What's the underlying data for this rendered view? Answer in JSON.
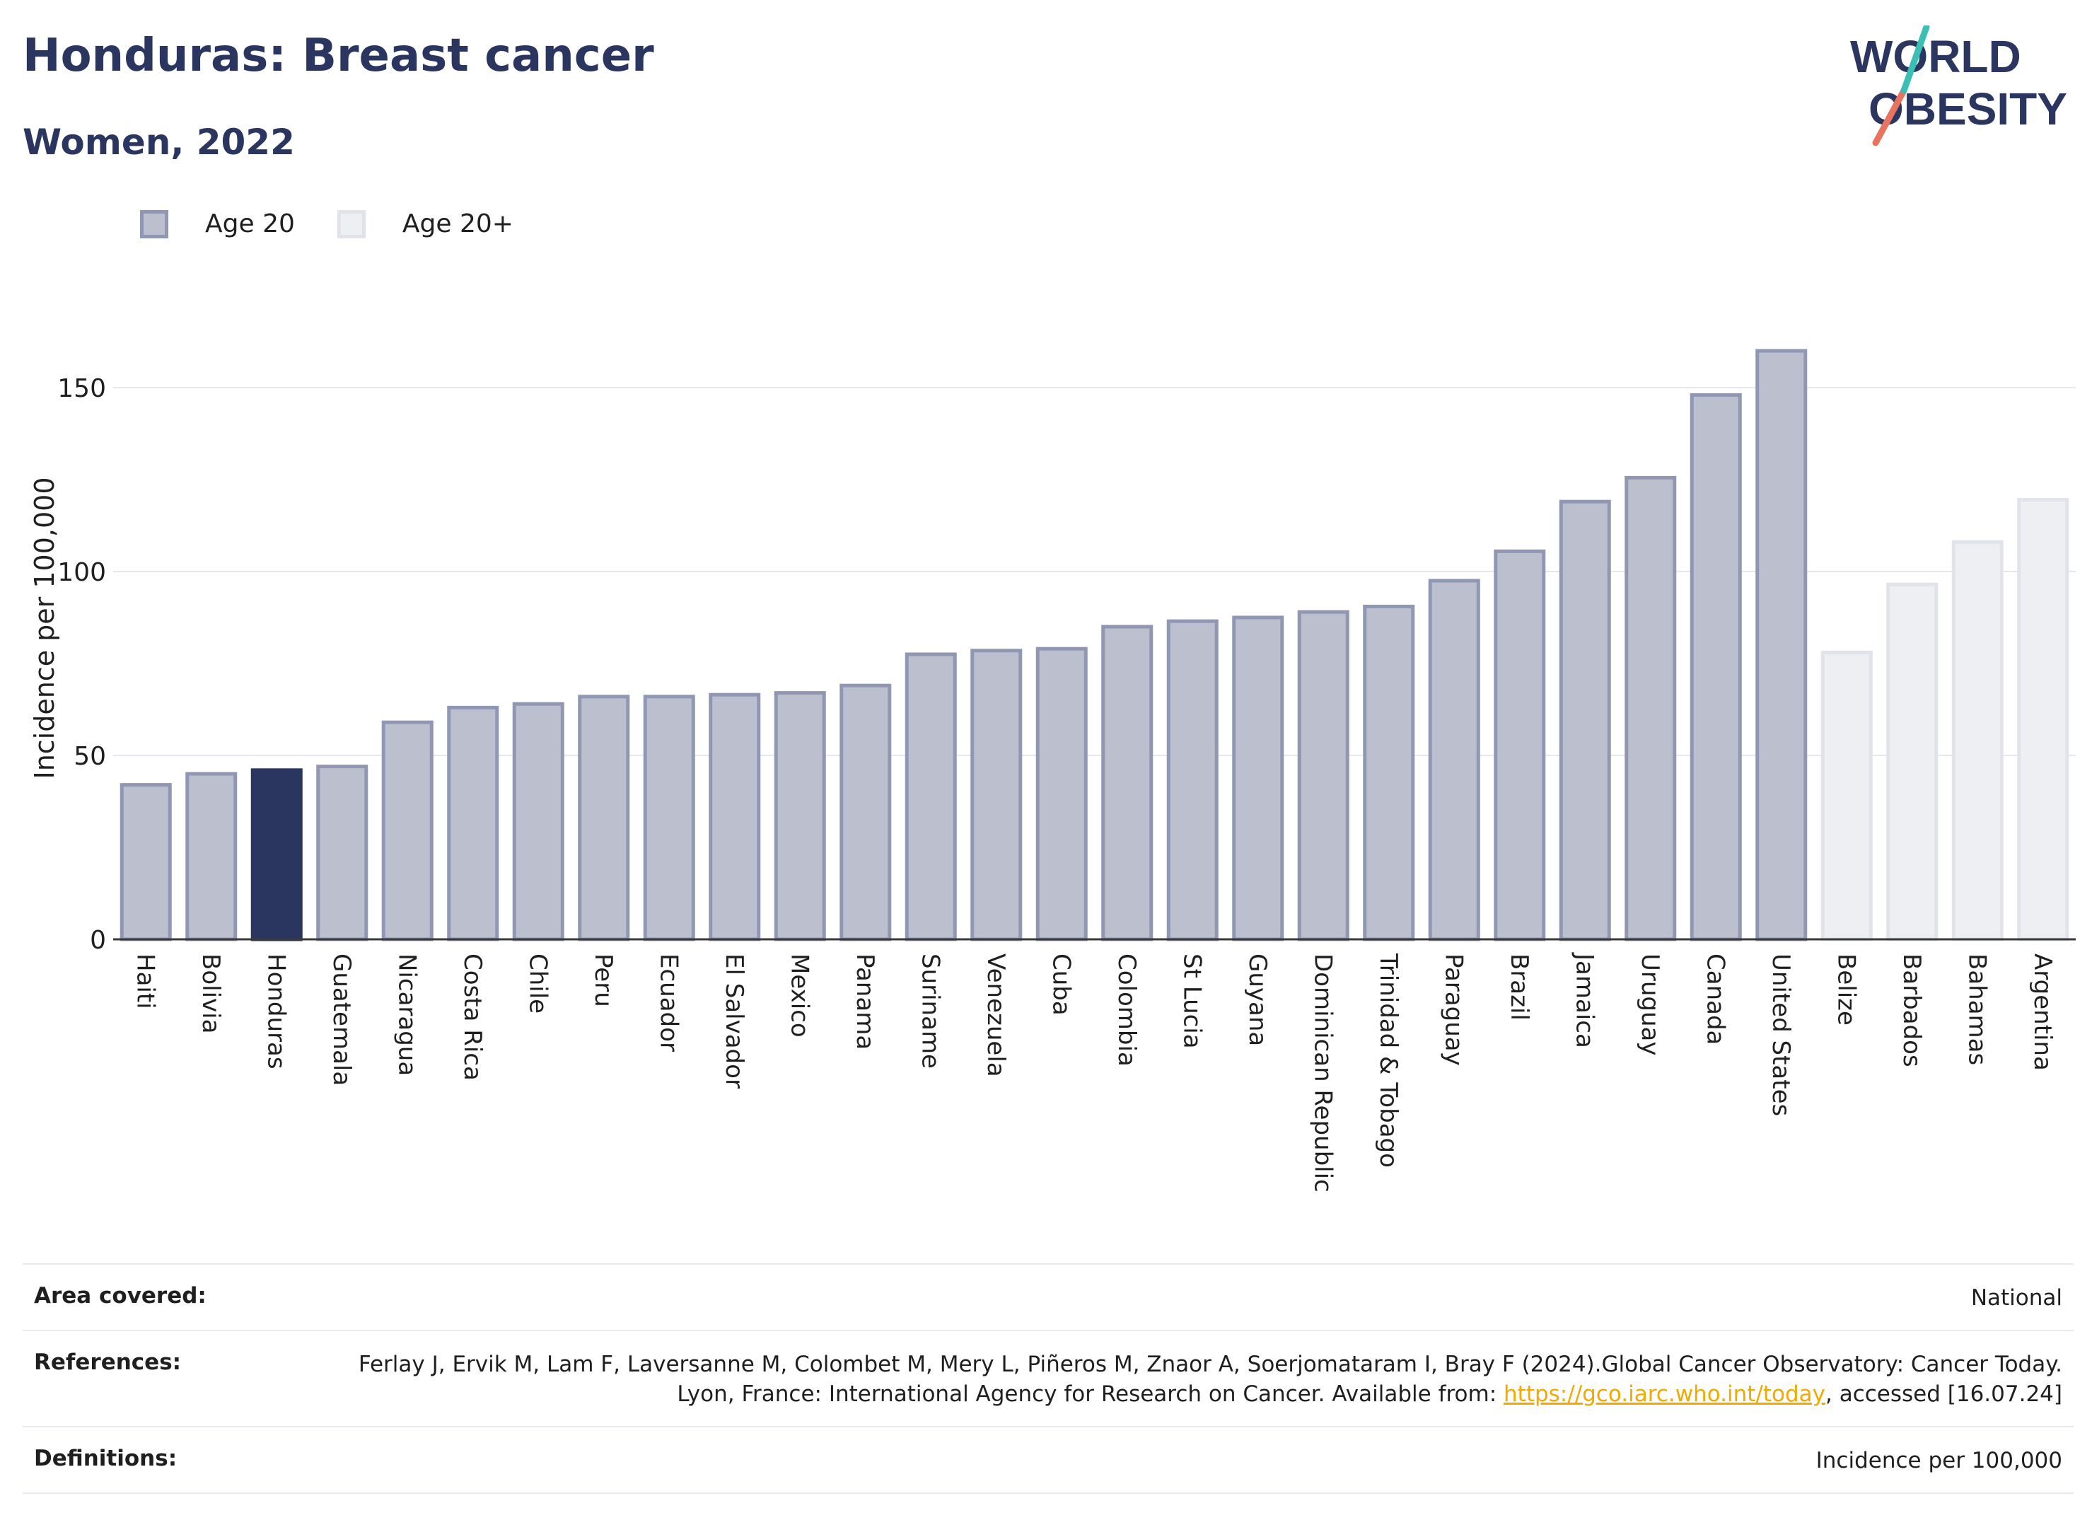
{
  "header": {
    "title": "Honduras: Breast cancer",
    "subtitle": "Women, 2022"
  },
  "logo": {
    "line1": "WORLD",
    "line2": "OBESITY"
  },
  "legend": [
    {
      "label": "Age 20",
      "color": "#bcc0ce"
    },
    {
      "label": "Age 20+",
      "color": "#eeeff3"
    }
  ],
  "chart_data": {
    "type": "bar",
    "title": "Honduras: Breast cancer",
    "subtitle": "Women, 2022",
    "ylabel": "Incidence per 100,000",
    "xlabel": "",
    "ylim": [
      0,
      175
    ],
    "yticks": [
      0,
      50,
      100,
      150
    ],
    "grid": true,
    "legend_position": "top-left",
    "highlight": "Honduras",
    "colors": {
      "age20": "#bcc0ce",
      "age20plus": "#eeeff3",
      "highlight": "#2b3660"
    },
    "bars": [
      {
        "category": "Haiti",
        "value": 42,
        "series": "Age 20"
      },
      {
        "category": "Bolivia",
        "value": 45,
        "series": "Age 20"
      },
      {
        "category": "Honduras",
        "value": 46,
        "series": "Age 20"
      },
      {
        "category": "Guatemala",
        "value": 47,
        "series": "Age 20"
      },
      {
        "category": "Nicaragua",
        "value": 59,
        "series": "Age 20"
      },
      {
        "category": "Costa Rica",
        "value": 63,
        "series": "Age 20"
      },
      {
        "category": "Chile",
        "value": 64,
        "series": "Age 20"
      },
      {
        "category": "Peru",
        "value": 66,
        "series": "Age 20"
      },
      {
        "category": "Ecuador",
        "value": 66,
        "series": "Age 20"
      },
      {
        "category": "El Salvador",
        "value": 66.5,
        "series": "Age 20"
      },
      {
        "category": "Mexico",
        "value": 67,
        "series": "Age 20"
      },
      {
        "category": "Panama",
        "value": 69,
        "series": "Age 20"
      },
      {
        "category": "Suriname",
        "value": 77.5,
        "series": "Age 20"
      },
      {
        "category": "Venezuela",
        "value": 78.5,
        "series": "Age 20"
      },
      {
        "category": "Cuba",
        "value": 79,
        "series": "Age 20"
      },
      {
        "category": "Colombia",
        "value": 85,
        "series": "Age 20"
      },
      {
        "category": "St Lucia",
        "value": 86.5,
        "series": "Age 20"
      },
      {
        "category": "Guyana",
        "value": 87.5,
        "series": "Age 20"
      },
      {
        "category": "Dominican Republic",
        "value": 89,
        "series": "Age 20"
      },
      {
        "category": "Trinidad & Tobago",
        "value": 90.5,
        "series": "Age 20"
      },
      {
        "category": "Paraguay",
        "value": 97.5,
        "series": "Age 20"
      },
      {
        "category": "Brazil",
        "value": 105.5,
        "series": "Age 20"
      },
      {
        "category": "Jamaica",
        "value": 119,
        "series": "Age 20"
      },
      {
        "category": "Uruguay",
        "value": 125.5,
        "series": "Age 20"
      },
      {
        "category": "Canada",
        "value": 148,
        "series": "Age 20"
      },
      {
        "category": "United States",
        "value": 160,
        "series": "Age 20"
      },
      {
        "category": "Belize",
        "value": 78,
        "series": "Age 20+"
      },
      {
        "category": "Barbados",
        "value": 96.5,
        "series": "Age 20+"
      },
      {
        "category": "Bahamas",
        "value": 108,
        "series": "Age 20+"
      },
      {
        "category": "Argentina",
        "value": 119.5,
        "series": "Age 20+"
      }
    ]
  },
  "footer": {
    "area_label": "Area covered:",
    "area_value": "National",
    "references_label": "References:",
    "references_text": "Ferlay J, Ervik M, Lam F, Laversanne M, Colombet M, Mery L, Piñeros M, Znaor A, Soerjomataram I, Bray F (2024).Global Cancer Observatory: Cancer Today. Lyon, France: International Agency for Research on Cancer. Available from:",
    "references_link": "https://gco.iarc.who.int/today",
    "references_tail": ", accessed [16.07.24]",
    "definitions_label": "Definitions:",
    "definitions_value": "Incidence per 100,000"
  }
}
